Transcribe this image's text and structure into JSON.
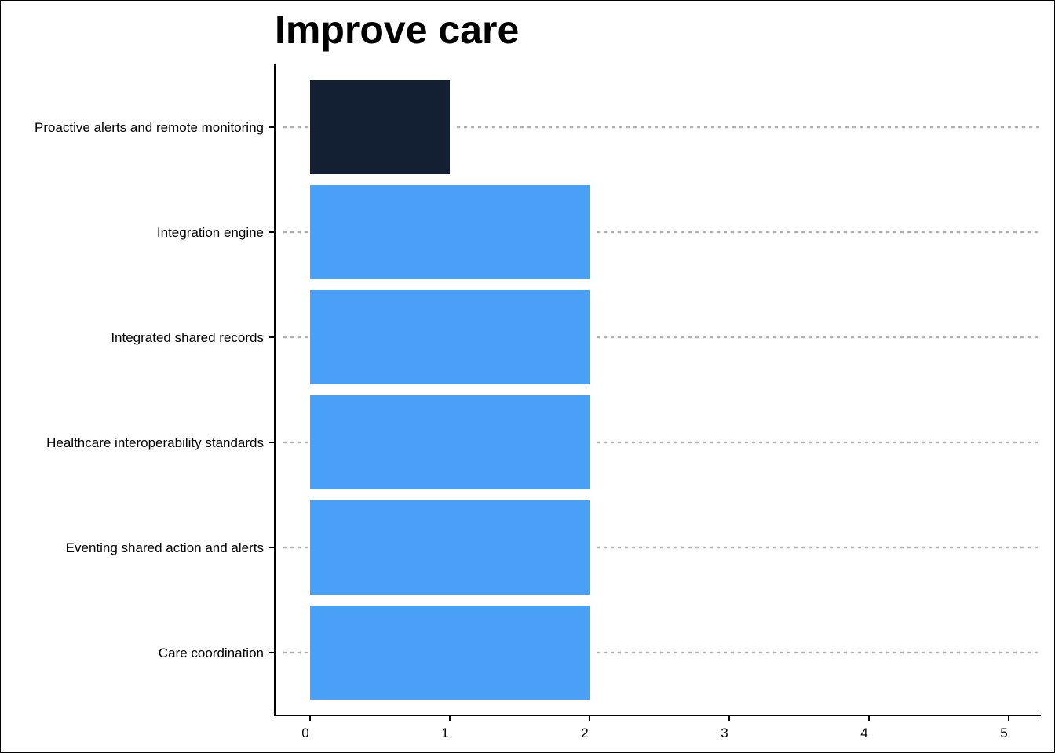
{
  "chart_data": {
    "type": "bar",
    "orientation": "horizontal",
    "title": "Improve care",
    "xlabel": "",
    "ylabel": "",
    "categories": [
      "Proactive alerts and remote monitoring",
      "Integration engine",
      "Integrated shared records",
      "Healthcare interoperability standards",
      "Eventing shared action and alerts",
      "Care coordination"
    ],
    "values": [
      1,
      2,
      2,
      2,
      2,
      2
    ],
    "bar_colors": [
      "#132033",
      "#4aa0f7",
      "#4aa0f7",
      "#4aa0f7",
      "#4aa0f7",
      "#4aa0f7"
    ],
    "xticks": [
      "0",
      "1",
      "2",
      "3",
      "4",
      "5"
    ],
    "xlim": [
      -0.25,
      5.25
    ],
    "grid": "dotted horizontal lines at each category",
    "grid_color": "#b0b0b0",
    "legend": "none"
  }
}
